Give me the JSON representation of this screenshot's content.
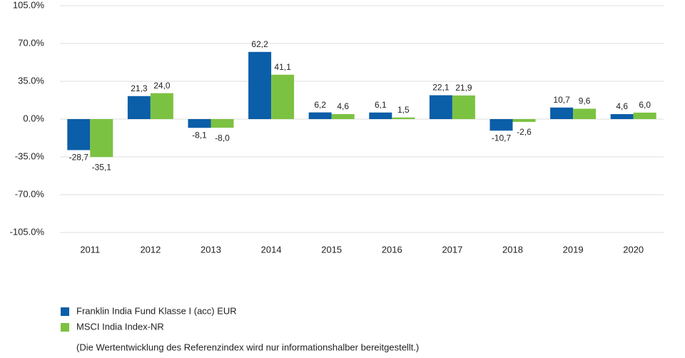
{
  "chart_data": {
    "type": "bar",
    "categories": [
      "2011",
      "2012",
      "2013",
      "2014",
      "2015",
      "2016",
      "2017",
      "2018",
      "2019",
      "2020"
    ],
    "series": [
      {
        "name": "Franklin India Fund Klasse I (acc) EUR",
        "color": "#0b5ea8",
        "values": [
          -28.7,
          21.3,
          -8.1,
          62.2,
          6.2,
          6.1,
          22.1,
          -10.7,
          10.7,
          4.6
        ],
        "value_labels": [
          "-28,7",
          "21,3",
          "-8,1",
          "62,2",
          "6,2",
          "6,1",
          "22,1",
          "-10,7",
          "10,7",
          "4,6"
        ]
      },
      {
        "name": "MSCI India Index-NR",
        "color": "#7cc242",
        "values": [
          -35.1,
          24.0,
          -8.0,
          41.1,
          4.6,
          1.5,
          21.9,
          -2.6,
          9.6,
          6.0
        ],
        "value_labels": [
          "-35,1",
          "24,0",
          "-8,0",
          "41,1",
          "4,6",
          "1,5",
          "21,9",
          "-2,6",
          "9,6",
          "6,0"
        ]
      }
    ],
    "ylim": [
      -105,
      105
    ],
    "yticks": [
      {
        "value": -105,
        "label": "-105.0%"
      },
      {
        "value": -70,
        "label": "-70.0%"
      },
      {
        "value": -35,
        "label": "-35.0%"
      },
      {
        "value": 0,
        "label": "0.0%"
      },
      {
        "value": 35,
        "label": "35.0%"
      },
      {
        "value": 70,
        "label": "70.0%"
      },
      {
        "value": 105,
        "label": "105.0%"
      }
    ],
    "grid": true,
    "legend": "bottom-left",
    "note": "(Die Wertentwicklung des Referenzindex wird nur informationshalber bereitgestellt.)"
  }
}
